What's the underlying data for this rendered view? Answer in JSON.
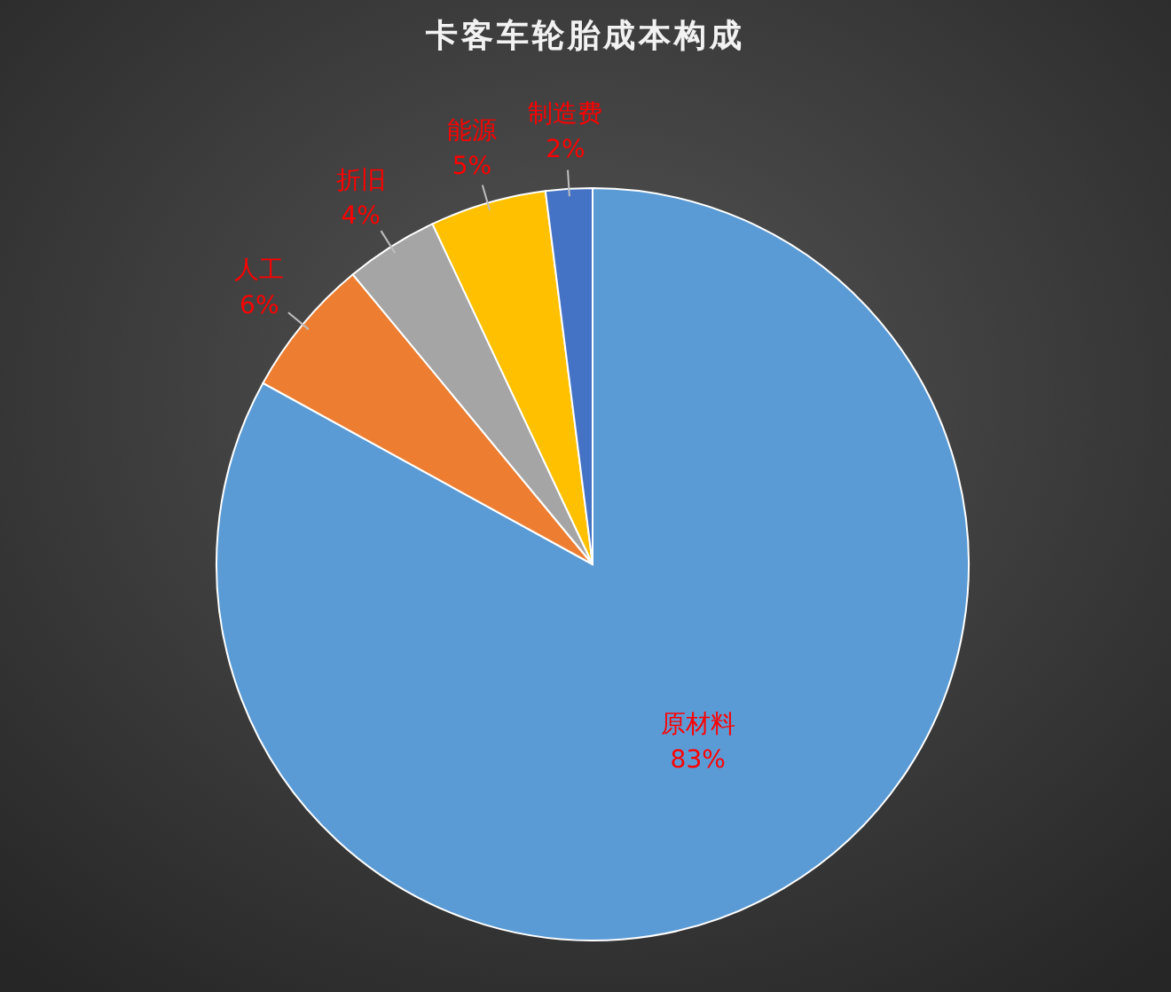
{
  "chart_data": {
    "type": "pie",
    "title": "卡客车轮胎成本构成",
    "categories": [
      "原材料",
      "人工",
      "折旧",
      "能源",
      "制造费"
    ],
    "values": [
      83,
      6,
      4,
      5,
      2
    ],
    "colors": [
      "#5b9bd5",
      "#ed7d31",
      "#a5a5a5",
      "#ffc000",
      "#4472c4"
    ],
    "value_labels": [
      "83%",
      "6%",
      "4%",
      "5%",
      "2%"
    ],
    "legend": false
  }
}
